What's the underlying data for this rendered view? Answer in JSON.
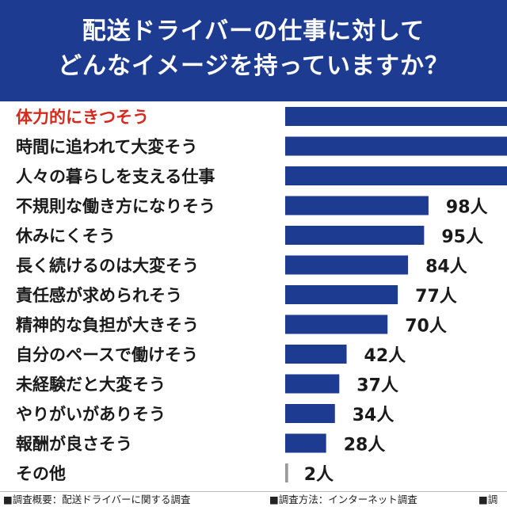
{
  "header": {
    "title_line1": "配送ドライバーの仕事に対して",
    "title_line2": "どんなイメージを持っていますか？"
  },
  "colors": {
    "header_bg": "#1c3b91",
    "bar": "#1c3b91",
    "highlight_label": "#d6281d",
    "label": "#1a1a1a"
  },
  "chart_data": {
    "type": "bar",
    "orientation": "horizontal",
    "title": "配送ドライバーの仕事に対してどんなイメージを持っていますか？",
    "value_unit": "人",
    "categories": [
      "体力的にきつそう",
      "時間に追われて大変そう",
      "人々の暮らしを支える仕事",
      "不規則な働き方になりそう",
      "休みにくそう",
      "長く続けるのは大変そう",
      "責任感が求められそう",
      "精神的な負担が大きそう",
      "自分のペースで働けそう",
      "未経験だと大変そう",
      "やりがいがありそう",
      "報酬が良さそう",
      "その他"
    ],
    "values": [
      null,
      null,
      null,
      98,
      95,
      84,
      77,
      70,
      42,
      37,
      34,
      28,
      2
    ],
    "value_labels": [
      "",
      "",
      "",
      "98人",
      "95人",
      "84人",
      "77人",
      "70人",
      "42人",
      "37人",
      "34人",
      "28人",
      "2人"
    ],
    "highlighted_index": 0,
    "bars_extend_past_frame": [
      0,
      1,
      2
    ]
  },
  "footer": {
    "item1": "■調査概要：配送ドライバーに関する調査",
    "item2": "■調査方法：インターネット調査",
    "item3": "■調"
  }
}
